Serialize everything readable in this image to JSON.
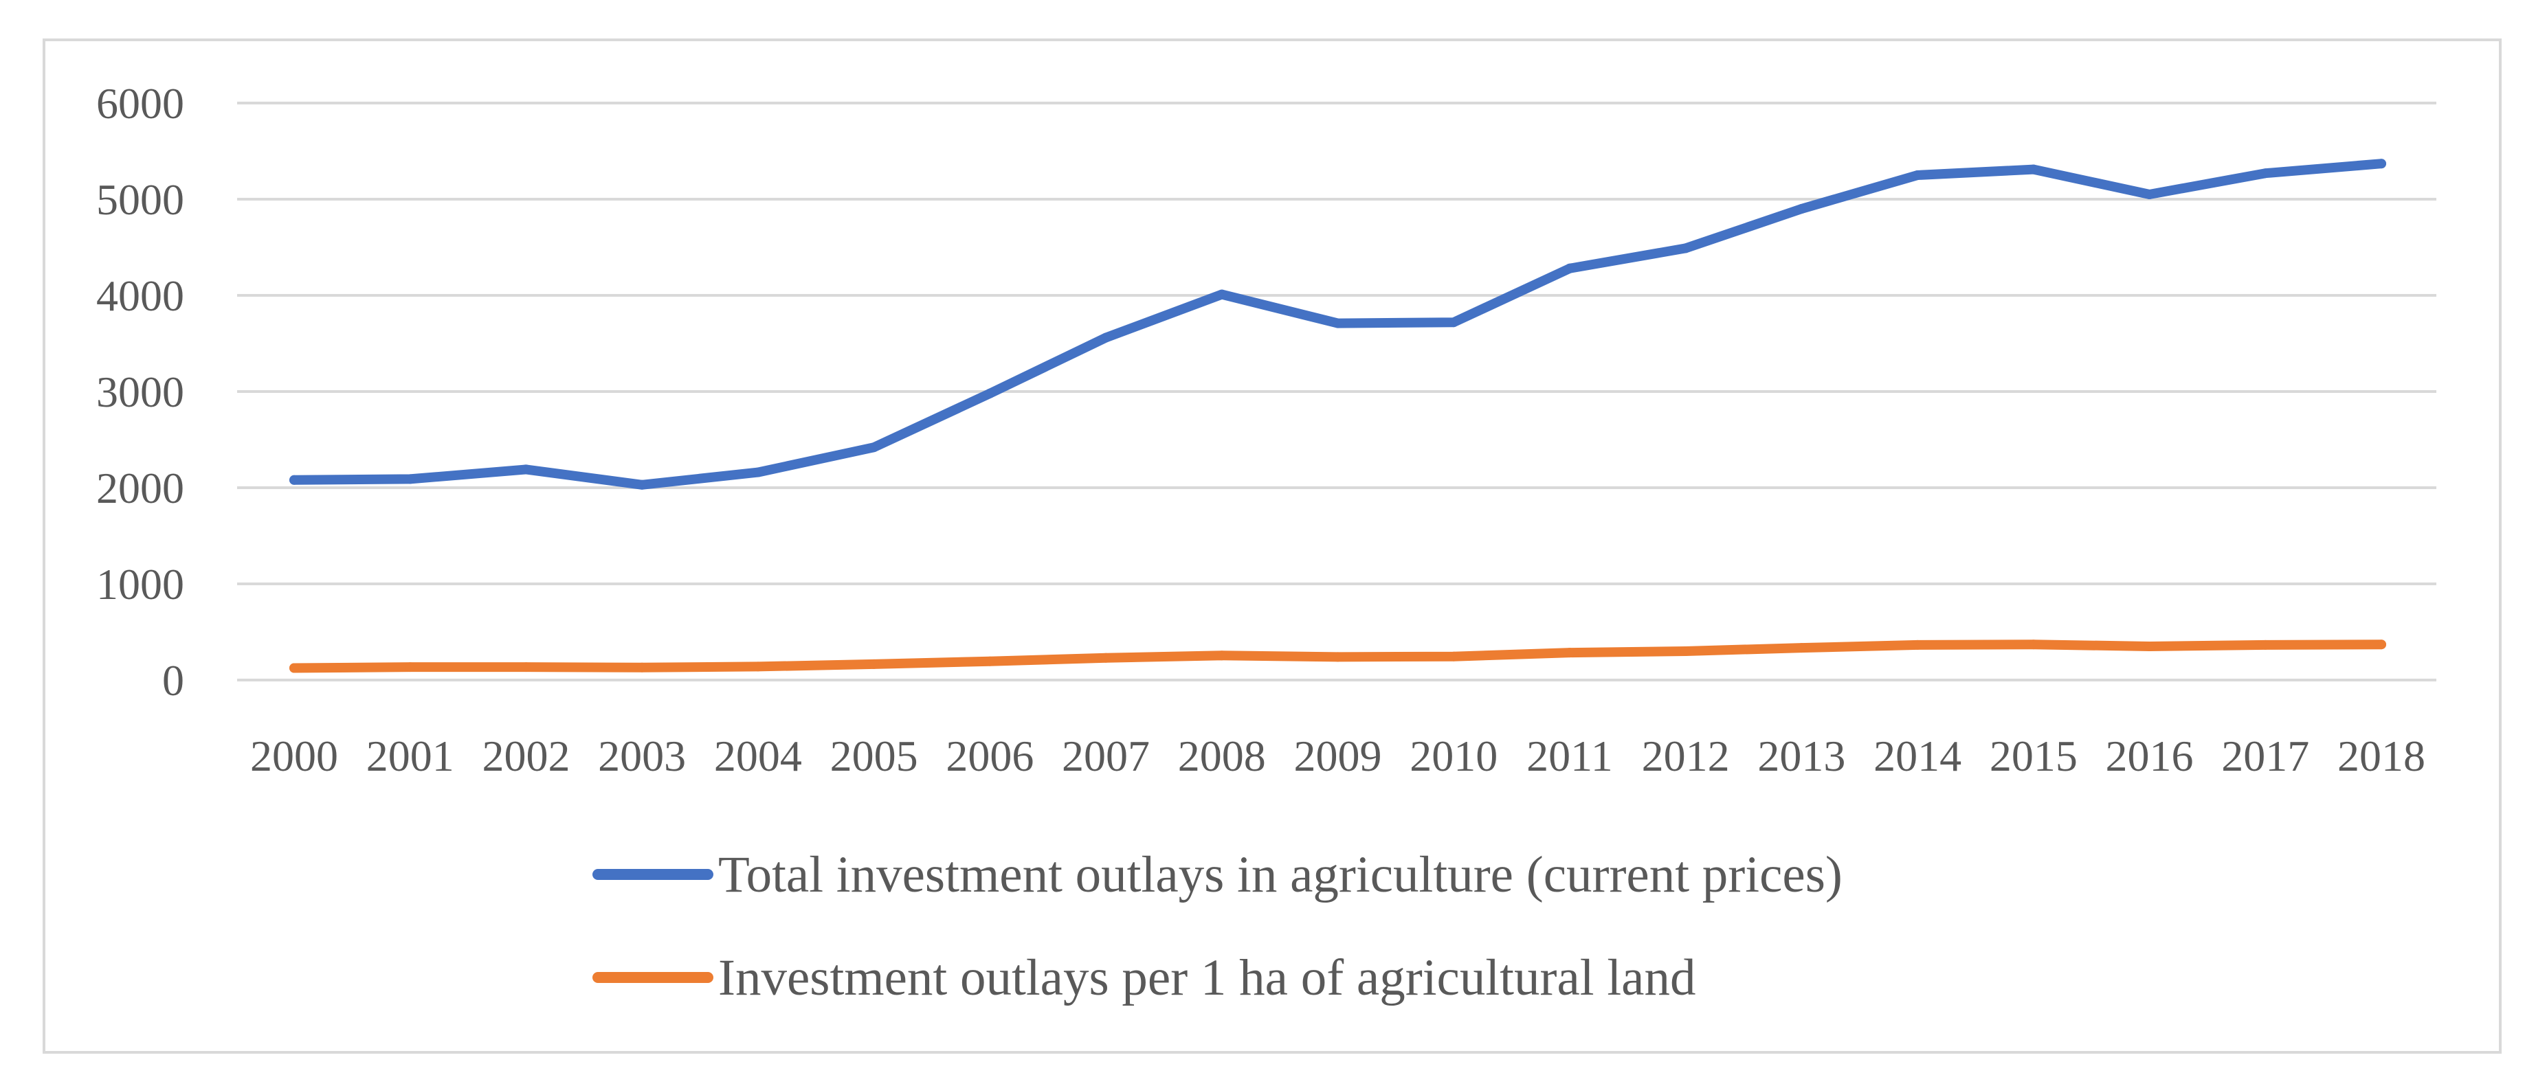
{
  "chart_data": {
    "type": "line",
    "title": "",
    "xlabel": "",
    "ylabel": "",
    "categories": [
      "2000",
      "2001",
      "2002",
      "2003",
      "2004",
      "2005",
      "2006",
      "2007",
      "2008",
      "2009",
      "2010",
      "2011",
      "2012",
      "2013",
      "2014",
      "2015",
      "2016",
      "2017",
      "2018"
    ],
    "ylim": [
      0,
      6000
    ],
    "yticks": [
      0,
      1000,
      2000,
      3000,
      4000,
      5000,
      6000
    ],
    "grid": true,
    "legend_position": "bottom",
    "series": [
      {
        "name": "Total investment outlays in agriculture (current prices)",
        "color": "#4472c4",
        "values": [
          2080,
          2090,
          2190,
          2030,
          2160,
          2420,
          2980,
          3560,
          4010,
          3710,
          3720,
          4280,
          4490,
          4900,
          5250,
          5310,
          5050,
          5270,
          5370
        ]
      },
      {
        "name": "Investment outlays per 1 ha of agricultural land",
        "color": "#ed7d31",
        "values": [
          125,
          135,
          135,
          130,
          140,
          165,
          195,
          230,
          255,
          240,
          245,
          285,
          300,
          335,
          365,
          370,
          350,
          365,
          370
        ]
      }
    ]
  }
}
